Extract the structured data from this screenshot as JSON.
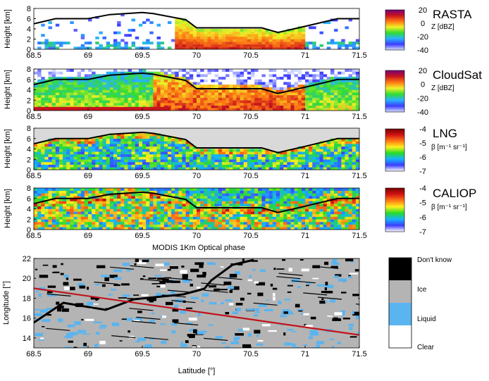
{
  "colors": {
    "axis": "#000000",
    "outline": "#000000",
    "lng_background": "#d9d9d9",
    "modis_track": "#c0141c",
    "modis_dontknow": "#000000",
    "modis_ice": "#b4b4b4",
    "modis_liquid": "#5ab4f0",
    "modis_clear": "#ffffff",
    "colormap_radar": [
      "#d7e1ff",
      "#3c3cff",
      "#28b4ff",
      "#32dc32",
      "#f0f028",
      "#ff7814",
      "#c8141e",
      "#780078"
    ],
    "colormap_lidar": [
      "#ffffff",
      "#3c3cff",
      "#14b4ff",
      "#28dc28",
      "#fff01e",
      "#ff7814",
      "#d21414",
      "#780000"
    ]
  },
  "chart_data": [
    {
      "type": "heatmap",
      "id": "rasta",
      "title": "RASTA",
      "ylabel": "Height [km]",
      "xlim": [
        68.5,
        71.5
      ],
      "ylim": [
        0,
        8
      ],
      "xticks": [
        68.5,
        69,
        69.5,
        70,
        70.5,
        71,
        71.5
      ],
      "yticks": [
        0,
        2,
        4,
        6,
        8
      ],
      "colorbar": {
        "label": "Z [dBZ]",
        "range": [
          -40,
          20
        ],
        "ticks": [
          20,
          0,
          -20,
          -40
        ]
      },
      "overlay_line": {
        "x": [
          68.5,
          68.7,
          69.0,
          69.2,
          69.5,
          69.6,
          69.9,
          70.0,
          70.6,
          70.75,
          71.0,
          71.3,
          71.5
        ],
        "y": [
          5.0,
          6.0,
          6.0,
          6.8,
          7.2,
          7.0,
          5.8,
          4.2,
          4.2,
          3.3,
          4.5,
          6.0,
          6.0
        ]
      }
    },
    {
      "type": "heatmap",
      "id": "cloudsat",
      "title": "CloudSat",
      "ylabel": "Height [km]",
      "xlim": [
        68.5,
        71.5
      ],
      "ylim": [
        0,
        8
      ],
      "xticks": [
        68.5,
        69,
        69.5,
        70,
        70.5,
        71,
        71.5
      ],
      "yticks": [
        0,
        2,
        4,
        6,
        8
      ],
      "colorbar": {
        "label": "Z [dBZ]",
        "range": [
          -40,
          20
        ],
        "ticks": [
          20,
          0,
          -20,
          -40
        ]
      },
      "overlay_line": {
        "x": [
          68.5,
          68.7,
          69.0,
          69.2,
          69.5,
          69.6,
          69.9,
          70.0,
          70.6,
          70.75,
          71.0,
          71.3,
          71.5
        ],
        "y": [
          5.0,
          6.0,
          6.0,
          6.8,
          7.2,
          7.0,
          5.8,
          4.2,
          4.2,
          3.3,
          4.5,
          6.0,
          6.0
        ]
      }
    },
    {
      "type": "heatmap",
      "id": "lng",
      "title": "LNG",
      "ylabel": "Height [km]",
      "xlim": [
        68.5,
        71.5
      ],
      "ylim": [
        0,
        8
      ],
      "xticks": [
        68.5,
        69,
        69.5,
        70,
        70.5,
        71,
        71.5
      ],
      "yticks": [
        0,
        2,
        4,
        6,
        8
      ],
      "colorbar": {
        "label": "β [m⁻¹ sr⁻¹]",
        "range": [
          -7,
          -4
        ],
        "ticks": [
          -4,
          -5,
          -6,
          -7
        ]
      },
      "overlay_line": {
        "x": [
          68.5,
          68.7,
          69.0,
          69.2,
          69.5,
          69.6,
          69.9,
          70.0,
          70.6,
          70.75,
          71.0,
          71.3,
          71.5
        ],
        "y": [
          5.0,
          6.0,
          6.0,
          6.8,
          7.2,
          7.0,
          5.8,
          4.2,
          4.2,
          3.3,
          4.5,
          6.0,
          6.0
        ]
      }
    },
    {
      "type": "heatmap",
      "id": "caliop",
      "title": "CALIOP",
      "ylabel": "Height [km]",
      "xlim": [
        68.5,
        71.5
      ],
      "ylim": [
        0,
        8
      ],
      "xticks": [
        68.5,
        69,
        69.5,
        70,
        70.5,
        71,
        71.5
      ],
      "yticks": [
        0,
        2,
        4,
        6,
        8
      ],
      "colorbar": {
        "label": "β [m⁻¹ sr⁻¹]",
        "range": [
          -7,
          -4
        ],
        "ticks": [
          -4,
          -5,
          -6,
          -7
        ]
      },
      "overlay_line": {
        "x": [
          68.5,
          68.7,
          69.0,
          69.2,
          69.5,
          69.6,
          69.9,
          70.0,
          70.6,
          70.75,
          71.0,
          71.3,
          71.5
        ],
        "y": [
          5.0,
          6.0,
          6.0,
          6.8,
          7.2,
          7.0,
          5.8,
          4.2,
          4.2,
          3.3,
          4.5,
          6.0,
          6.0
        ]
      }
    },
    {
      "type": "heatmap",
      "id": "modis",
      "title": "MODIS 1Km Optical phase",
      "xlabel": "Latitude [°]",
      "ylabel": "Longitude [°]",
      "xlim": [
        68.5,
        71.5
      ],
      "ylim": [
        13,
        22
      ],
      "xticks": [
        68.5,
        69,
        69.5,
        70,
        70.5,
        71,
        71.5
      ],
      "yticks": [
        14,
        16,
        18,
        20,
        22
      ],
      "legend": [
        "Don't know",
        "Ice",
        "Liquid",
        "Clear"
      ],
      "track_line": {
        "x": [
          68.5,
          71.5
        ],
        "y": [
          19.0,
          14.3
        ]
      }
    }
  ]
}
